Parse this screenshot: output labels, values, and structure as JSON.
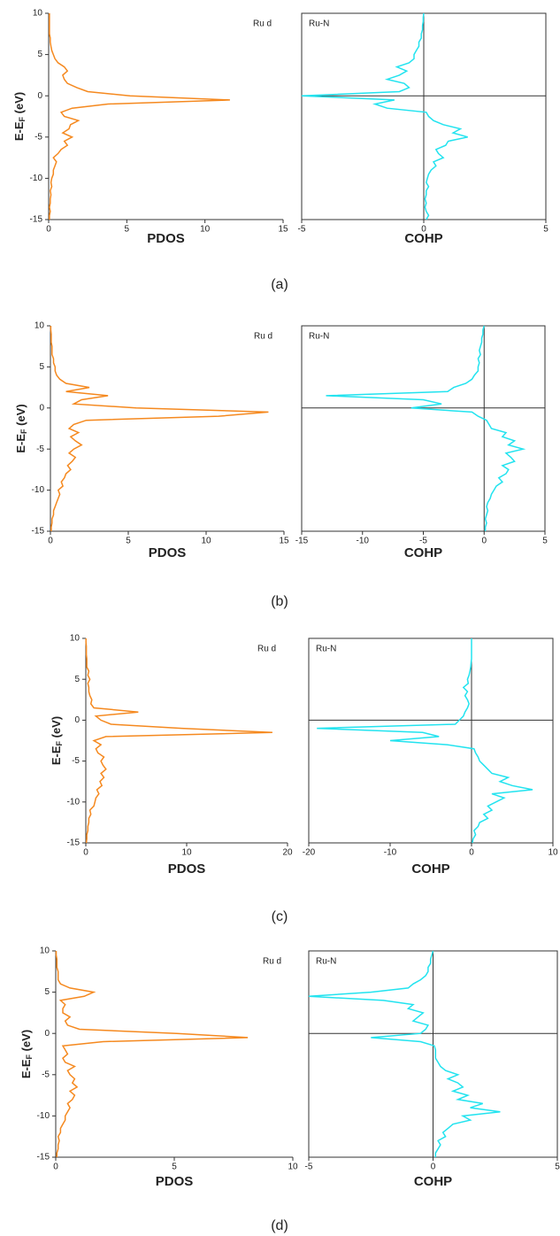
{
  "chart_data": [
    {
      "type": "line",
      "caption": "(a)",
      "xlabel": "PDOS",
      "ylabel": [
        "E-E",
        "F",
        " (eV)"
      ],
      "xlim": [
        0,
        15
      ],
      "xticks": [
        0,
        5,
        10,
        15
      ],
      "ylim": [
        -15,
        10
      ],
      "yticks": [
        -15,
        -10,
        -5,
        0,
        5,
        10
      ],
      "y": [
        -15,
        -14.5,
        -14,
        -13.5,
        -13,
        -12.5,
        -12,
        -11.5,
        -11,
        -10.5,
        -10,
        -9.5,
        -9,
        -8.5,
        -8,
        -7.5,
        -7,
        -6.5,
        -6,
        -5.5,
        -5,
        -4.5,
        -4,
        -3.5,
        -3,
        -2.5,
        -2,
        -1.5,
        -1,
        -0.5,
        0,
        0.5,
        1,
        1.5,
        2,
        2.5,
        3,
        3.5,
        4,
        4.5,
        5,
        5.5,
        6,
        6.5,
        7,
        7.5,
        8,
        8.5,
        9,
        9.5,
        10
      ],
      "series": [
        {
          "name": "Ru d",
          "color": "#f5891f",
          "values": [
            0.05,
            0.05,
            0.1,
            0.05,
            0.1,
            0.1,
            0.15,
            0.1,
            0.2,
            0.15,
            0.2,
            0.3,
            0.3,
            0.4,
            0.5,
            0.3,
            0.6,
            0.8,
            1.2,
            1.0,
            1.5,
            0.9,
            1.3,
            1.4,
            1.9,
            1.0,
            0.8,
            1.5,
            3.8,
            11.6,
            5.2,
            2.5,
            1.8,
            1.2,
            1.0,
            0.9,
            1.2,
            1.0,
            0.6,
            0.4,
            0.3,
            0.2,
            0.15,
            0.1,
            0.1,
            0.05,
            0.05,
            0.05,
            0.05,
            0.05,
            0.05
          ]
        }
      ]
    },
    {
      "type": "line",
      "xlabel": "COHP",
      "xlim": [
        -5,
        5
      ],
      "xticks": [
        -5,
        0,
        5
      ],
      "ylim": [
        -15,
        10
      ],
      "y": [
        -15,
        -14.5,
        -14,
        -13.5,
        -13,
        -12.5,
        -12,
        -11.5,
        -11,
        -10.5,
        -10,
        -9.5,
        -9,
        -8.5,
        -8,
        -7.5,
        -7,
        -6.5,
        -6,
        -5.5,
        -5,
        -4.5,
        -4,
        -3.5,
        -3,
        -2.5,
        -2,
        -1.5,
        -1,
        -0.5,
        0,
        0.5,
        1,
        1.5,
        2,
        2.5,
        3,
        3.5,
        4,
        4.5,
        5,
        5.5,
        6,
        6.5,
        7,
        7.5,
        8,
        8.5,
        9,
        9.5,
        10
      ],
      "series": [
        {
          "name": "Ru-N",
          "color": "#22e3ef",
          "values": [
            0.1,
            0.2,
            0.1,
            0.05,
            0.1,
            0.05,
            0.1,
            0.1,
            0.2,
            0.1,
            0.15,
            0.2,
            0.3,
            0.5,
            0.4,
            0.8,
            0.6,
            0.5,
            0.9,
            1.0,
            1.8,
            1.2,
            1.5,
            0.8,
            0.4,
            0.2,
            0.1,
            -1.5,
            -2.0,
            -1.2,
            -5.0,
            -1.0,
            -0.6,
            -0.8,
            -1.5,
            -1.0,
            -0.7,
            -1.1,
            -0.6,
            -0.4,
            -0.4,
            -0.3,
            -0.2,
            -0.2,
            -0.1,
            -0.1,
            -0.05,
            -0.05,
            -0.02,
            -0.02,
            0
          ]
        }
      ]
    },
    {
      "type": "line",
      "caption": "(b)",
      "xlabel": "PDOS",
      "ylabel": [
        "E-E",
        "F",
        " (eV)"
      ],
      "xlim": [
        0,
        15
      ],
      "xticks": [
        0,
        5,
        10,
        15
      ],
      "ylim": [
        -15,
        10
      ],
      "yticks": [
        -15,
        -10,
        -5,
        0,
        5,
        10
      ],
      "y": [
        -15,
        -14.5,
        -14,
        -13.5,
        -13,
        -12.5,
        -12,
        -11.5,
        -11,
        -10.5,
        -10,
        -9.5,
        -9,
        -8.5,
        -8,
        -7.5,
        -7,
        -6.5,
        -6,
        -5.5,
        -5,
        -4.5,
        -4,
        -3.5,
        -3,
        -2.5,
        -2,
        -1.5,
        -1,
        -0.5,
        0,
        0.5,
        1,
        1.5,
        2,
        2.5,
        3,
        3.5,
        4,
        4.5,
        5,
        5.5,
        6,
        6.5,
        7,
        7.5,
        8,
        8.5,
        9,
        9.5,
        10
      ],
      "series": [
        {
          "name": "Ru d",
          "color": "#f5891f",
          "values": [
            0.05,
            0.05,
            0.1,
            0.1,
            0.2,
            0.2,
            0.3,
            0.4,
            0.5,
            0.6,
            0.5,
            0.8,
            0.7,
            0.9,
            1.0,
            1.3,
            1.1,
            1.4,
            1.6,
            1.2,
            1.5,
            2.0,
            1.6,
            1.3,
            1.8,
            1.2,
            1.5,
            2.3,
            10.8,
            14.0,
            5.5,
            1.5,
            2.0,
            3.7,
            1.0,
            2.5,
            1.0,
            0.6,
            0.4,
            0.3,
            0.3,
            0.2,
            0.2,
            0.1,
            0.1,
            0.1,
            0.05,
            0.05,
            0.05,
            0.02,
            0.02
          ]
        }
      ]
    },
    {
      "type": "line",
      "xlabel": "COHP",
      "xlim": [
        -15,
        5
      ],
      "xticks": [
        -15,
        -10,
        -5,
        0,
        5
      ],
      "ylim": [
        -15,
        10
      ],
      "y": [
        -15,
        -14.5,
        -14,
        -13.5,
        -13,
        -12.5,
        -12,
        -11.5,
        -11,
        -10.5,
        -10,
        -9.5,
        -9,
        -8.5,
        -8,
        -7.5,
        -7,
        -6.5,
        -6,
        -5.5,
        -5,
        -4.5,
        -4,
        -3.5,
        -3,
        -2.5,
        -2,
        -1.5,
        -1,
        -0.5,
        0,
        0.5,
        1,
        1.5,
        2,
        2.5,
        3,
        3.5,
        4,
        4.5,
        5,
        5.5,
        6,
        6.5,
        7,
        7.5,
        8,
        8.5,
        9,
        9.5,
        10
      ],
      "series": [
        {
          "name": "Ru-N",
          "color": "#22e3ef",
          "values": [
            0.1,
            0.1,
            0.2,
            0.1,
            0.2,
            0.3,
            0.2,
            0.3,
            0.5,
            0.6,
            0.8,
            1.0,
            1.5,
            1.2,
            1.8,
            2.0,
            1.5,
            2.5,
            2.2,
            1.8,
            3.2,
            2.0,
            2.5,
            1.5,
            1.8,
            0.6,
            0.4,
            0.2,
            -0.5,
            -1.0,
            -6.0,
            -3.5,
            -5.0,
            -13.0,
            -3.0,
            -2.5,
            -1.5,
            -1.0,
            -0.8,
            -0.5,
            -0.5,
            -0.4,
            -0.5,
            -0.3,
            -0.4,
            -0.3,
            -0.2,
            -0.2,
            -0.1,
            -0.1,
            0
          ]
        }
      ]
    },
    {
      "type": "line",
      "caption": "(c)",
      "xlabel": "PDOS",
      "ylabel": [
        "E-E",
        "F",
        " (eV)"
      ],
      "xlim": [
        0,
        20
      ],
      "xticks": [
        0,
        10,
        20
      ],
      "ylim": [
        -15,
        10
      ],
      "yticks": [
        -15,
        -10,
        -5,
        0,
        5,
        10
      ],
      "y": [
        -15,
        -14.5,
        -14,
        -13.5,
        -13,
        -12.5,
        -12,
        -11.5,
        -11,
        -10.5,
        -10,
        -9.5,
        -9,
        -8.5,
        -8,
        -7.5,
        -7,
        -6.5,
        -6,
        -5.5,
        -5,
        -4.5,
        -4,
        -3.5,
        -3,
        -2.5,
        -2,
        -1.5,
        -1,
        -0.5,
        0,
        0.5,
        1,
        1.5,
        2,
        2.5,
        3,
        3.5,
        4,
        4.5,
        5,
        5.5,
        6,
        6.5,
        7,
        7.5,
        8,
        8.5,
        9,
        9.5,
        10
      ],
      "series": [
        {
          "name": "Ru d",
          "color": "#f5891f",
          "values": [
            0.05,
            0.1,
            0.1,
            0.2,
            0.2,
            0.3,
            0.3,
            0.5,
            0.4,
            0.8,
            0.9,
            1.0,
            1.3,
            1.1,
            1.6,
            1.4,
            1.8,
            1.5,
            2.0,
            1.7,
            1.5,
            1.8,
            1.2,
            1.0,
            1.5,
            0.8,
            2.0,
            18.5,
            9.5,
            2.5,
            1.5,
            1.0,
            5.2,
            0.8,
            0.5,
            0.6,
            0.4,
            0.3,
            0.3,
            0.2,
            0.4,
            0.2,
            0.3,
            0.1,
            0.1,
            0.1,
            0.05,
            0.05,
            0.05,
            0.02,
            0.02
          ]
        }
      ]
    },
    {
      "type": "line",
      "xlabel": "COHP",
      "xlim": [
        -20,
        10
      ],
      "xticks": [
        -20,
        -10,
        0,
        10
      ],
      "ylim": [
        -15,
        10
      ],
      "y": [
        -15,
        -14.5,
        -14,
        -13.5,
        -13,
        -12.5,
        -12,
        -11.5,
        -11,
        -10.5,
        -10,
        -9.5,
        -9,
        -8.5,
        -8,
        -7.5,
        -7,
        -6.5,
        -6,
        -5.5,
        -5,
        -4.5,
        -4,
        -3.5,
        -3,
        -2.5,
        -2,
        -1.5,
        -1,
        -0.5,
        0,
        0.5,
        1,
        1.5,
        2,
        2.5,
        3,
        3.5,
        4,
        4.5,
        5,
        5.5,
        6,
        6.5,
        7,
        7.5,
        8,
        8.5,
        9,
        9.5,
        10
      ],
      "series": [
        {
          "name": "Ru-N",
          "color": "#22e3ef",
          "values": [
            0.1,
            0.2,
            0.5,
            0.3,
            0.8,
            1.0,
            2.0,
            1.5,
            2.5,
            2.0,
            3.0,
            4.0,
            2.5,
            7.5,
            5.0,
            3.5,
            4.5,
            2.5,
            2.0,
            1.5,
            1.0,
            0.8,
            0.5,
            0.3,
            -3.0,
            -10.0,
            -4.0,
            -6.0,
            -19.0,
            -2.0,
            -1.5,
            -1.0,
            -0.8,
            -0.5,
            -0.3,
            -0.5,
            -0.8,
            -0.5,
            -1.0,
            -0.4,
            -0.5,
            -0.3,
            -0.2,
            -0.1,
            -0.05,
            0,
            0,
            0,
            0,
            0,
            0
          ]
        }
      ]
    },
    {
      "type": "line",
      "caption": "(d)",
      "xlabel": "PDOS",
      "ylabel": [
        "E-E",
        "F",
        " (eV)"
      ],
      "xlim": [
        0,
        10
      ],
      "xticks": [
        0,
        5,
        10
      ],
      "ylim": [
        -15,
        10
      ],
      "yticks": [
        -15,
        -10,
        -5,
        0,
        5,
        10
      ],
      "y": [
        -15,
        -14.5,
        -14,
        -13.5,
        -13,
        -12.5,
        -12,
        -11.5,
        -11,
        -10.5,
        -10,
        -9.5,
        -9,
        -8.5,
        -8,
        -7.5,
        -7,
        -6.5,
        -6,
        -5.5,
        -5,
        -4.5,
        -4,
        -3.5,
        -3,
        -2.5,
        -2,
        -1.5,
        -1,
        -0.5,
        0,
        0.5,
        1,
        1.5,
        2,
        2.5,
        3,
        3.5,
        4,
        4.5,
        5,
        5.5,
        6,
        6.5,
        7,
        7.5,
        8,
        8.5,
        9,
        9.5,
        10
      ],
      "series": [
        {
          "name": "Ru d",
          "color": "#f5891f",
          "values": [
            0.05,
            0.05,
            0.1,
            0.1,
            0.15,
            0.1,
            0.2,
            0.2,
            0.3,
            0.4,
            0.4,
            0.5,
            0.6,
            0.5,
            0.7,
            0.8,
            0.6,
            0.9,
            0.7,
            0.8,
            0.6,
            0.5,
            0.8,
            0.4,
            0.3,
            0.5,
            0.4,
            0.3,
            2.0,
            8.1,
            5.1,
            1.0,
            0.5,
            0.4,
            0.6,
            0.3,
            0.3,
            0.4,
            0.2,
            1.2,
            1.6,
            0.6,
            0.2,
            0.1,
            0.1,
            0.1,
            0.05,
            0.05,
            0.05,
            0.02,
            0.02
          ]
        }
      ]
    },
    {
      "type": "line",
      "xlabel": "COHP",
      "xlim": [
        -5,
        5
      ],
      "xticks": [
        -5,
        0,
        5
      ],
      "ylim": [
        -15,
        10
      ],
      "y": [
        -15,
        -14.5,
        -14,
        -13.5,
        -13,
        -12.5,
        -12,
        -11.5,
        -11,
        -10.5,
        -10,
        -9.5,
        -9,
        -8.5,
        -8,
        -7.5,
        -7,
        -6.5,
        -6,
        -5.5,
        -5,
        -4.5,
        -4,
        -3.5,
        -3,
        -2.5,
        -2,
        -1.5,
        -1,
        -0.5,
        0,
        0.5,
        1,
        1.5,
        2,
        2.5,
        3,
        3.5,
        4,
        4.5,
        5,
        5.5,
        6,
        6.5,
        7,
        7.5,
        8,
        8.5,
        9,
        9.5,
        10
      ],
      "series": [
        {
          "name": "Ru-N",
          "color": "#22e3ef",
          "values": [
            0.1,
            0.1,
            0.2,
            0.3,
            0.2,
            0.5,
            0.4,
            0.6,
            0.8,
            1.5,
            1.2,
            2.7,
            1.5,
            2.0,
            1.0,
            1.4,
            0.8,
            1.2,
            1.0,
            0.6,
            1.0,
            0.5,
            0.3,
            0.2,
            0.1,
            0.1,
            0.1,
            0.05,
            -0.5,
            -2.5,
            -0.5,
            -0.3,
            -0.2,
            -0.8,
            -0.6,
            -0.4,
            -1.0,
            -0.8,
            -2.0,
            -5.0,
            -2.5,
            -1.0,
            -0.8,
            -0.5,
            -0.3,
            -0.2,
            -0.2,
            -0.1,
            -0.1,
            -0.05,
            0
          ]
        }
      ]
    }
  ]
}
